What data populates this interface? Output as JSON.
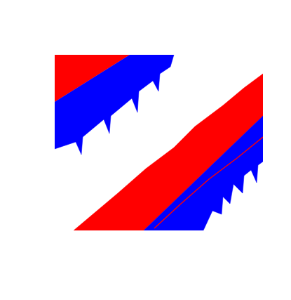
{
  "chart_data": {
    "type": "area",
    "tick_labels": false,
    "grid": false,
    "xlim": [
      0,
      297
    ],
    "ylim": [
      0,
      252
    ],
    "series": [
      {
        "type": "area",
        "color": "#ff0000",
        "x": [
          0,
          107,
          0
        ],
        "y": [
          252,
          252,
          185
        ]
      },
      {
        "type": "area",
        "color": "#0000ff",
        "x": [
          107,
          170,
          165,
          150,
          148,
          140,
          120,
          118,
          110,
          80,
          78,
          70,
          40,
          38,
          30,
          0,
          0
        ],
        "y": [
          252,
          252,
          235,
          225,
          200,
          215,
          200,
          170,
          190,
          165,
          140,
          160,
          135,
          110,
          128,
          118,
          185
        ]
      },
      {
        "type": "area",
        "color": "#ff0000",
        "x": [
          27,
          60,
          90,
          130,
          170,
          200,
          240,
          270,
          297,
          297,
          127
        ],
        "y": [
          2,
          30,
          55,
          90,
          120,
          150,
          180,
          205,
          225,
          165,
          2
        ]
      },
      {
        "type": "area",
        "color": "#0000ff",
        "x": [
          127,
          297,
          297,
          290,
          288,
          280,
          270,
          268,
          255,
          250,
          240,
          238,
          225,
          212
        ],
        "y": [
          2,
          165,
          100,
          95,
          70,
          88,
          80,
          55,
          68,
          40,
          50,
          25,
          30,
          2
        ]
      },
      {
        "type": "line",
        "color": "#ff0000",
        "x": [
          142,
          180,
          220,
          260,
          297
        ],
        "y": [
          5,
          40,
          75,
          105,
          135
        ]
      }
    ]
  }
}
